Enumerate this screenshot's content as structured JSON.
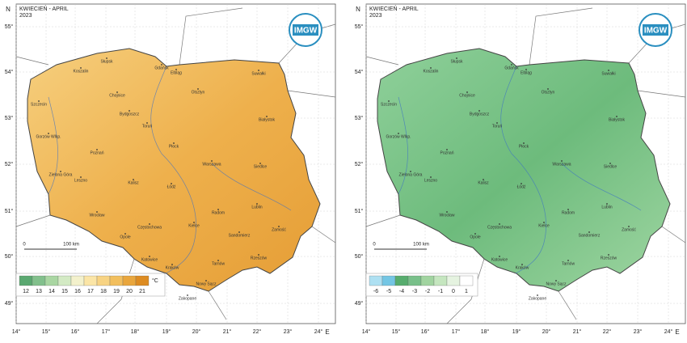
{
  "panels": [
    {
      "title": "KWIECIEŃ - APRIL",
      "year": "2023",
      "legend": {
        "values": [
          12,
          13,
          14,
          15,
          16,
          17,
          18,
          19,
          20,
          21
        ],
        "colors": [
          "#5aa870",
          "#82c08c",
          "#a9d6a2",
          "#d3eac4",
          "#f3f1cc",
          "#fbe5a6",
          "#f7d383",
          "#f2bf5e",
          "#e9a63d",
          "#dd8c22"
        ],
        "unit": "°C"
      }
    },
    {
      "title": "KWIECIEŃ - APRIL",
      "year": "2023",
      "legend": {
        "values": [
          -6,
          -5,
          -4,
          -3,
          -2,
          -1,
          0,
          1
        ],
        "colors": [
          "#aee0f2",
          "#74c6e4",
          "#57ad6e",
          "#79c08a",
          "#a1d4a0",
          "#c5e6bf",
          "#e5f3e0",
          "#ffffff"
        ]
      }
    }
  ],
  "latitude_labels": [
    "55°",
    "54°",
    "53°",
    "52°",
    "51°",
    "50°",
    "49°"
  ],
  "longitude_labels": [
    "14°",
    "15°",
    "16°",
    "17°",
    "18°",
    "19°",
    "20°",
    "21°",
    "22°",
    "23°",
    "24°"
  ],
  "north": "N",
  "east": "E",
  "logo": "IMGW",
  "scale": {
    "zero": "0",
    "length": "100 km"
  },
  "cities": [
    "Gdańsk",
    "Elbląg",
    "Olsztyn",
    "Suwałki",
    "Białystok",
    "Koszalin",
    "Słupsk",
    "Szczecin",
    "Chojnice",
    "Bydgoszcz",
    "Toruń",
    "Gorzów Wlkp.",
    "Poznań",
    "Płock",
    "Warszawa",
    "Siedlce",
    "Zielona Góra",
    "Leszno",
    "Kalisz",
    "Łódź",
    "Radom",
    "Lublin",
    "Wrocław",
    "Opole",
    "Częstochowa",
    "Kielce",
    "Sandomierz",
    "Zamość",
    "Katowice",
    "Kraków",
    "Tarnów",
    "Rzeszów",
    "Zakopane",
    "Nowy Sącz"
  ]
}
